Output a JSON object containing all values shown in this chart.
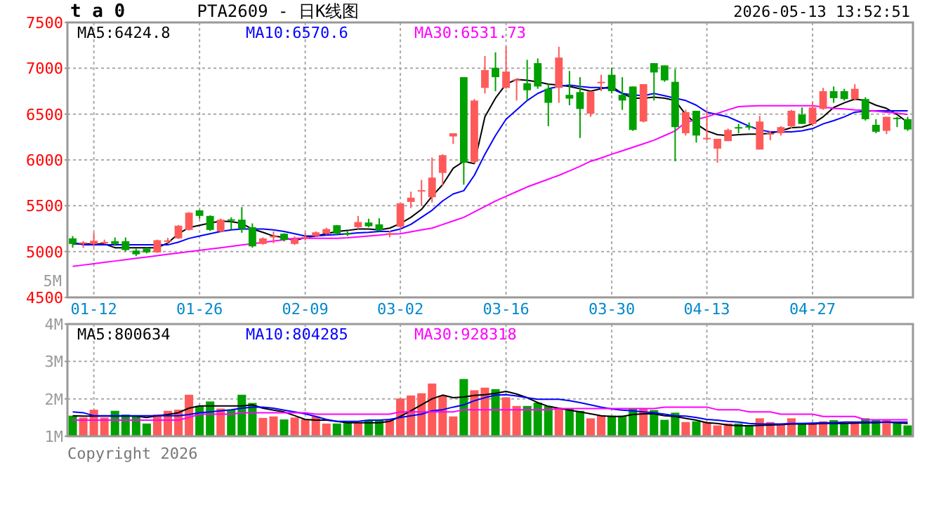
{
  "chart_data": [
    {
      "type": "candlestick",
      "title": "PTA2609 - 日K线图",
      "annotations": [
        "t a 0",
        "2026-05-13 13:52:51"
      ],
      "categories": [
        null,
        null,
        "01-12",
        null,
        null,
        null,
        null,
        null,
        null,
        null,
        null,
        null,
        "01-26",
        null,
        null,
        null,
        null,
        null,
        null,
        null,
        null,
        null,
        "02-09",
        null,
        null,
        null,
        null,
        null,
        null,
        null,
        null,
        "03-02",
        null,
        null,
        null,
        null,
        null,
        null,
        null,
        null,
        null,
        "03-16",
        null,
        null,
        null,
        null,
        null,
        null,
        null,
        null,
        null,
        "03-30",
        null,
        null,
        null,
        null,
        null,
        null,
        null,
        null,
        "04-13",
        null,
        null,
        null,
        null,
        null,
        null,
        null,
        null,
        null,
        "04-27",
        null,
        null,
        null,
        null,
        null,
        null,
        null,
        null,
        null
      ],
      "ohlc": [
        [
          5144,
          5169,
          5042,
          5083
        ],
        [
          5095,
          5115,
          5040,
          5100
        ],
        [
          5083,
          5205,
          5052,
          5118
        ],
        [
          5100,
          5130,
          5080,
          5105
        ],
        [
          5113,
          5154,
          5062,
          5083
        ],
        [
          5113,
          5154,
          5001,
          5016
        ],
        [
          5011,
          5032,
          4950,
          4970
        ],
        [
          5032,
          5042,
          4980,
          4991
        ],
        [
          4991,
          5130,
          4985,
          5124
        ],
        [
          5115,
          5150,
          5090,
          5122
        ],
        [
          5144,
          5290,
          5138,
          5282
        ],
        [
          5236,
          5430,
          5230,
          5424
        ],
        [
          5450,
          5455,
          5358,
          5389
        ],
        [
          5389,
          5395,
          5225,
          5236
        ],
        [
          5220,
          5360,
          5210,
          5348
        ],
        [
          5352,
          5373,
          5240,
          5345
        ],
        [
          5348,
          5485,
          5205,
          5246
        ],
        [
          5266,
          5307,
          5042,
          5057
        ],
        [
          5083,
          5155,
          5075,
          5144
        ],
        [
          5165,
          5220,
          5090,
          5170
        ],
        [
          5195,
          5200,
          5110,
          5128
        ],
        [
          5083,
          5165,
          5073,
          5134
        ],
        [
          5150,
          5205,
          5120,
          5160
        ],
        [
          5170,
          5220,
          5160,
          5210
        ],
        [
          5195,
          5260,
          5185,
          5246
        ],
        [
          5287,
          5290,
          5185,
          5195
        ],
        [
          5200,
          5220,
          5170,
          5195
        ],
        [
          5266,
          5389,
          5246,
          5322
        ],
        [
          5317,
          5358,
          5266,
          5276
        ],
        [
          5297,
          5363,
          5220,
          5231
        ],
        [
          5190,
          5225,
          5155,
          5200
        ],
        [
          5271,
          5526,
          5246,
          5526
        ],
        [
          5542,
          5654,
          5475,
          5588
        ],
        [
          5660,
          5782,
          5500,
          5670
        ],
        [
          5593,
          6026,
          5536,
          5807
        ],
        [
          5858,
          6062,
          5715,
          6052
        ],
        [
          6256,
          6291,
          6174,
          6291
        ],
        [
          6903,
          6903,
          5730,
          5970
        ],
        [
          5980,
          6664,
          5960,
          6648
        ],
        [
          6786,
          7133,
          6725,
          6980
        ],
        [
          7005,
          7174,
          6750,
          6903
        ],
        [
          6786,
          7235,
          6776,
          6964
        ],
        [
          6862,
          6890,
          6648,
          6878
        ],
        [
          6837,
          7092,
          6648,
          6760
        ],
        [
          7056,
          7107,
          6776,
          6801
        ],
        [
          6776,
          6827,
          6368,
          6623
        ],
        [
          6786,
          7235,
          6623,
          7117
        ],
        [
          6710,
          6970,
          6597,
          6669
        ],
        [
          6740,
          6903,
          6240,
          6556
        ],
        [
          6505,
          6750,
          6470,
          6745
        ],
        [
          6842,
          6929,
          6750,
          6852
        ],
        [
          6929,
          7005,
          6725,
          6750
        ],
        [
          6710,
          6903,
          6546,
          6648
        ],
        [
          6801,
          6801,
          6317,
          6327
        ],
        [
          6419,
          6827,
          6409,
          6827
        ],
        [
          7056,
          7056,
          6648,
          6954
        ],
        [
          7031,
          7031,
          6852,
          6868
        ],
        [
          6852,
          6990,
          5985,
          6358
        ],
        [
          6291,
          6546,
          6266,
          6521
        ],
        [
          6536,
          6536,
          6189,
          6266
        ],
        [
          6235,
          6546,
          6215,
          6240
        ],
        [
          6123,
          6230,
          5970,
          6230
        ],
        [
          6205,
          6342,
          6205,
          6327
        ],
        [
          6358,
          6393,
          6291,
          6352
        ],
        [
          6368,
          6409,
          6327,
          6358
        ],
        [
          6113,
          6480,
          6113,
          6419
        ],
        [
          6286,
          6317,
          6215,
          6291
        ],
        [
          6291,
          6368,
          6266,
          6358
        ],
        [
          6368,
          6546,
          6342,
          6536
        ],
        [
          6495,
          6572,
          6393,
          6393
        ],
        [
          6393,
          6633,
          6368,
          6572
        ],
        [
          6556,
          6786,
          6546,
          6750
        ],
        [
          6750,
          6801,
          6623,
          6674
        ],
        [
          6750,
          6776,
          6648,
          6664
        ],
        [
          6664,
          6827,
          6648,
          6776
        ],
        [
          6664,
          6684,
          6429,
          6444
        ],
        [
          6383,
          6444,
          6291,
          6307
        ],
        [
          6317,
          6470,
          6281,
          6470
        ],
        [
          6460,
          6470,
          6358,
          6454
        ],
        [
          6444,
          6470,
          6317,
          6332
        ]
      ],
      "colors": [
        "#00a000",
        "#ff5a5a",
        "#ff5a5a",
        "#ff5a5a",
        "#00a000",
        "#00a000",
        "#00a000",
        "#00a000",
        "#ff5a5a",
        "#ff5a5a",
        "#ff5a5a",
        "#ff5a5a",
        "#00a000",
        "#00a000",
        "#ff5a5a",
        "#00a000",
        "#00a000",
        "#00a000",
        "#ff5a5a",
        "#ff5a5a",
        "#00a000",
        "#ff5a5a",
        "#ff5a5a",
        "#ff5a5a",
        "#ff5a5a",
        "#00a000",
        "#00a000",
        "#ff5a5a",
        "#00a000",
        "#00a000",
        "#ff5a5a",
        "#ff5a5a",
        "#ff5a5a",
        "#ff5a5a",
        "#ff5a5a",
        "#ff5a5a",
        "#ff5a5a",
        "#00a000",
        "#ff5a5a",
        "#ff5a5a",
        "#00a000",
        "#ff5a5a",
        "#ff5a5a",
        "#00a000",
        "#00a000",
        "#00a000",
        "#ff5a5a",
        "#00a000",
        "#00a000",
        "#ff5a5a",
        "#ff5a5a",
        "#00a000",
        "#00a000",
        "#00a000",
        "#ff5a5a",
        "#00a000",
        "#00a000",
        "#00a000",
        "#ff5a5a",
        "#00a000",
        "#ff5a5a",
        "#ff5a5a",
        "#ff5a5a",
        "#00a000",
        "#00a000",
        "#ff5a5a",
        "#ff5a5a",
        "#ff5a5a",
        "#ff5a5a",
        "#00a000",
        "#ff5a5a",
        "#ff5a5a",
        "#00a000",
        "#00a000",
        "#ff5a5a",
        "#00a000",
        "#00a000",
        "#ff5a5a",
        "#00a000",
        "#00a000"
      ],
      "series": [
        {
          "type": "line",
          "name": "MA5:6424.8",
          "color": "#000000",
          "values": [
            5083,
            5083,
            5083,
            5083,
            5042,
            5042,
            5042,
            5042,
            5042,
            5093,
            5195,
            5261,
            5287,
            5312,
            5332,
            5327,
            5307,
            5246,
            5210,
            5169,
            5154,
            5118,
            5154,
            5169,
            5195,
            5220,
            5230,
            5246,
            5246,
            5236,
            5256,
            5307,
            5373,
            5460,
            5603,
            5730,
            5909,
            5985,
            5960,
            6470,
            6674,
            6827,
            6878,
            6868,
            6852,
            6827,
            6817,
            6801,
            6776,
            6750,
            6776,
            6801,
            6725,
            6674,
            6674,
            6684,
            6674,
            6648,
            6495,
            6393,
            6317,
            6276,
            6266,
            6276,
            6281,
            6281,
            6291,
            6317,
            6352,
            6358,
            6393,
            6470,
            6572,
            6623,
            6664,
            6648,
            6597,
            6562,
            6495,
            6409
          ]
        },
        {
          "type": "line",
          "name": "MA10:6570.6",
          "color": "#0000ff",
          "values": [
            5103,
            5073,
            5073,
            5073,
            5073,
            5073,
            5073,
            5073,
            5073,
            5073,
            5103,
            5144,
            5169,
            5195,
            5220,
            5236,
            5246,
            5246,
            5246,
            5236,
            5220,
            5195,
            5170,
            5170,
            5180,
            5185,
            5195,
            5205,
            5210,
            5220,
            5220,
            5246,
            5297,
            5373,
            5450,
            5552,
            5629,
            5664,
            5832,
            6062,
            6266,
            6444,
            6546,
            6648,
            6725,
            6776,
            6801,
            6817,
            6801,
            6791,
            6791,
            6776,
            6725,
            6710,
            6700,
            6725,
            6700,
            6674,
            6648,
            6597,
            6521,
            6495,
            6470,
            6419,
            6368,
            6327,
            6307,
            6307,
            6307,
            6317,
            6342,
            6393,
            6429,
            6470,
            6521,
            6531,
            6536,
            6536,
            6536,
            6536
          ]
        },
        {
          "type": "line",
          "name": "MA30:6531.73",
          "color": "#ff00ff",
          "values": [
            4838,
            4853,
            4867,
            4882,
            4897,
            4911,
            4926,
            4940,
            4955,
            4970,
            4984,
            4999,
            5013,
            5028,
            5042,
            5057,
            5072,
            5086,
            5101,
            5115,
            5130,
            5144,
            5144,
            5144,
            5144,
            5144,
            5150,
            5160,
            5169,
            5180,
            5190,
            5195,
            5215,
            5236,
            5256,
            5295,
            5334,
            5373,
            5433,
            5492,
            5552,
            5603,
            5654,
            5705,
            5747,
            5790,
            5832,
            5880,
            5930,
            5985,
            6021,
            6062,
            6100,
            6138,
            6176,
            6215,
            6266,
            6317,
            6409,
            6440,
            6470,
            6508,
            6546,
            6582,
            6587,
            6592,
            6592,
            6592,
            6592,
            6592,
            6592,
            6577,
            6562,
            6557,
            6546,
            6541,
            6531,
            6521,
            6511,
            6495
          ]
        }
      ],
      "ylim": [
        4500,
        7500
      ],
      "yticks": [
        4500,
        5000,
        5500,
        6000,
        6500,
        7000,
        7500
      ],
      "grid": true,
      "legend": "top"
    },
    {
      "type": "bar",
      "annotations": [
        "5M",
        "Copyright 2026"
      ],
      "categories": [
        null,
        null,
        null,
        null,
        null,
        null,
        null,
        null,
        null,
        null,
        null,
        null,
        null,
        null,
        null,
        null,
        null,
        null,
        null,
        null,
        null,
        null,
        null,
        null,
        null,
        null,
        null,
        null,
        null,
        null,
        null,
        null,
        null,
        null,
        null,
        null,
        null,
        null,
        null,
        null,
        null,
        null,
        null,
        null,
        null,
        null,
        null,
        null,
        null,
        null,
        null,
        null,
        null,
        null,
        null,
        null,
        null,
        null,
        null,
        null,
        null,
        null,
        null,
        null,
        null,
        null,
        null,
        null,
        null,
        null,
        null,
        null,
        null,
        null,
        null,
        null,
        null,
        null,
        null,
        null
      ],
      "series": [
        {
          "type": "bar",
          "colors": [
            "#00a000",
            "#ff5a5a",
            "#ff5a5a",
            "#ff5a5a",
            "#00a000",
            "#00a000",
            "#00a000",
            "#00a000",
            "#ff5a5a",
            "#ff5a5a",
            "#ff5a5a",
            "#ff5a5a",
            "#00a000",
            "#00a000",
            "#ff5a5a",
            "#00a000",
            "#00a000",
            "#00a000",
            "#ff5a5a",
            "#ff5a5a",
            "#00a000",
            "#ff5a5a",
            "#ff5a5a",
            "#ff5a5a",
            "#ff5a5a",
            "#00a000",
            "#00a000",
            "#ff5a5a",
            "#00a000",
            "#00a000",
            "#ff5a5a",
            "#ff5a5a",
            "#ff5a5a",
            "#ff5a5a",
            "#ff5a5a",
            "#ff5a5a",
            "#ff5a5a",
            "#00a000",
            "#ff5a5a",
            "#ff5a5a",
            "#00a000",
            "#ff5a5a",
            "#ff5a5a",
            "#00a000",
            "#00a000",
            "#00a000",
            "#ff5a5a",
            "#00a000",
            "#00a000",
            "#ff5a5a",
            "#ff5a5a",
            "#00a000",
            "#00a000",
            "#00a000",
            "#ff5a5a",
            "#00a000",
            "#00a000",
            "#00a000",
            "#ff5a5a",
            "#00a000",
            "#ff5a5a",
            "#ff5a5a",
            "#ff5a5a",
            "#00a000",
            "#00a000",
            "#ff5a5a",
            "#ff5a5a",
            "#ff5a5a",
            "#ff5a5a",
            "#00a000",
            "#ff5a5a",
            "#ff5a5a",
            "#00a000",
            "#00a000",
            "#ff5a5a",
            "#00a000",
            "#00a000",
            "#ff5a5a",
            "#00a000",
            "#00a000"
          ],
          "values": [
            1.55,
            1.5,
            1.71,
            1.5,
            1.68,
            1.58,
            1.53,
            1.34,
            1.58,
            1.68,
            1.71,
            2.11,
            1.81,
            1.93,
            1.74,
            1.71,
            2.11,
            1.89,
            1.49,
            1.53,
            1.45,
            1.5,
            1.45,
            1.53,
            1.34,
            1.34,
            1.36,
            1.36,
            1.43,
            1.43,
            1.43,
            2.01,
            2.09,
            2.15,
            2.41,
            2.09,
            1.53,
            2.53,
            2.23,
            2.3,
            2.26,
            2.04,
            1.81,
            1.81,
            1.9,
            1.81,
            1.75,
            1.75,
            1.68,
            1.48,
            1.55,
            1.55,
            1.55,
            1.73,
            1.75,
            1.7,
            1.44,
            1.63,
            1.38,
            1.4,
            1.38,
            1.29,
            1.34,
            1.34,
            1.28,
            1.48,
            1.38,
            1.3,
            1.48,
            1.36,
            1.36,
            1.4,
            1.43,
            1.33,
            1.34,
            1.48,
            1.43,
            1.43,
            1.36,
            1.29
          ]
        },
        {
          "type": "line",
          "name": "MA5:800634",
          "color": "#000000",
          "values": [
            1.55,
            1.54,
            1.54,
            1.54,
            1.54,
            1.54,
            1.54,
            1.5,
            1.55,
            1.58,
            1.63,
            1.75,
            1.81,
            1.81,
            1.81,
            1.81,
            1.81,
            1.84,
            1.75,
            1.7,
            1.65,
            1.55,
            1.45,
            1.43,
            1.43,
            1.4,
            1.36,
            1.36,
            1.36,
            1.36,
            1.4,
            1.53,
            1.68,
            1.84,
            2.0,
            2.1,
            2.03,
            2.05,
            2.09,
            2.11,
            2.15,
            2.2,
            2.13,
            2.03,
            1.9,
            1.8,
            1.75,
            1.7,
            1.65,
            1.6,
            1.55,
            1.53,
            1.53,
            1.58,
            1.6,
            1.6,
            1.55,
            1.53,
            1.48,
            1.43,
            1.36,
            1.34,
            1.3,
            1.28,
            1.28,
            1.29,
            1.3,
            1.31,
            1.33,
            1.33,
            1.33,
            1.34,
            1.34,
            1.34,
            1.35,
            1.36,
            1.36,
            1.38,
            1.36,
            1.34
          ]
        },
        {
          "type": "line",
          "name": "MA10:804285",
          "color": "#0000ff",
          "values": [
            1.65,
            1.63,
            1.55,
            1.55,
            1.55,
            1.55,
            1.55,
            1.55,
            1.55,
            1.55,
            1.55,
            1.58,
            1.63,
            1.65,
            1.68,
            1.71,
            1.75,
            1.78,
            1.78,
            1.75,
            1.7,
            1.65,
            1.6,
            1.53,
            1.45,
            1.4,
            1.4,
            1.4,
            1.43,
            1.43,
            1.45,
            1.5,
            1.55,
            1.59,
            1.68,
            1.71,
            1.78,
            1.84,
            1.95,
            2.03,
            2.1,
            2.11,
            2.08,
            2.03,
            1.99,
            1.99,
            1.99,
            1.95,
            1.9,
            1.84,
            1.78,
            1.73,
            1.7,
            1.68,
            1.65,
            1.63,
            1.59,
            1.55,
            1.54,
            1.5,
            1.45,
            1.43,
            1.4,
            1.38,
            1.34,
            1.33,
            1.33,
            1.33,
            1.34,
            1.34,
            1.35,
            1.36,
            1.36,
            1.38,
            1.38,
            1.38,
            1.38,
            1.38,
            1.38,
            1.38
          ]
        },
        {
          "type": "line",
          "name": "MA30:928318",
          "color": "#ff00ff",
          "values": [
            1.43,
            1.43,
            1.43,
            1.43,
            1.43,
            1.43,
            1.43,
            1.43,
            1.43,
            1.43,
            1.43,
            1.5,
            1.59,
            1.59,
            1.59,
            1.59,
            1.63,
            1.63,
            1.63,
            1.63,
            1.63,
            1.63,
            1.63,
            1.59,
            1.59,
            1.59,
            1.59,
            1.59,
            1.59,
            1.59,
            1.59,
            1.65,
            1.65,
            1.65,
            1.65,
            1.65,
            1.65,
            1.71,
            1.71,
            1.71,
            1.71,
            1.71,
            1.71,
            1.71,
            1.71,
            1.71,
            1.74,
            1.74,
            1.74,
            1.74,
            1.74,
            1.74,
            1.74,
            1.74,
            1.74,
            1.74,
            1.78,
            1.78,
            1.78,
            1.78,
            1.78,
            1.71,
            1.71,
            1.71,
            1.65,
            1.65,
            1.65,
            1.59,
            1.59,
            1.59,
            1.59,
            1.53,
            1.53,
            1.53,
            1.53,
            1.44,
            1.44,
            1.44,
            1.44,
            1.44
          ]
        }
      ],
      "ylim": [
        1,
        4
      ],
      "yticks": [
        {
          "value": 1,
          "label": "1M"
        },
        {
          "value": 2,
          "label": "2M"
        },
        {
          "value": 3,
          "label": "3M"
        },
        {
          "value": 4,
          "label": "4M"
        }
      ],
      "grid": true,
      "legend": "top",
      "tick_labels": "y"
    }
  ]
}
